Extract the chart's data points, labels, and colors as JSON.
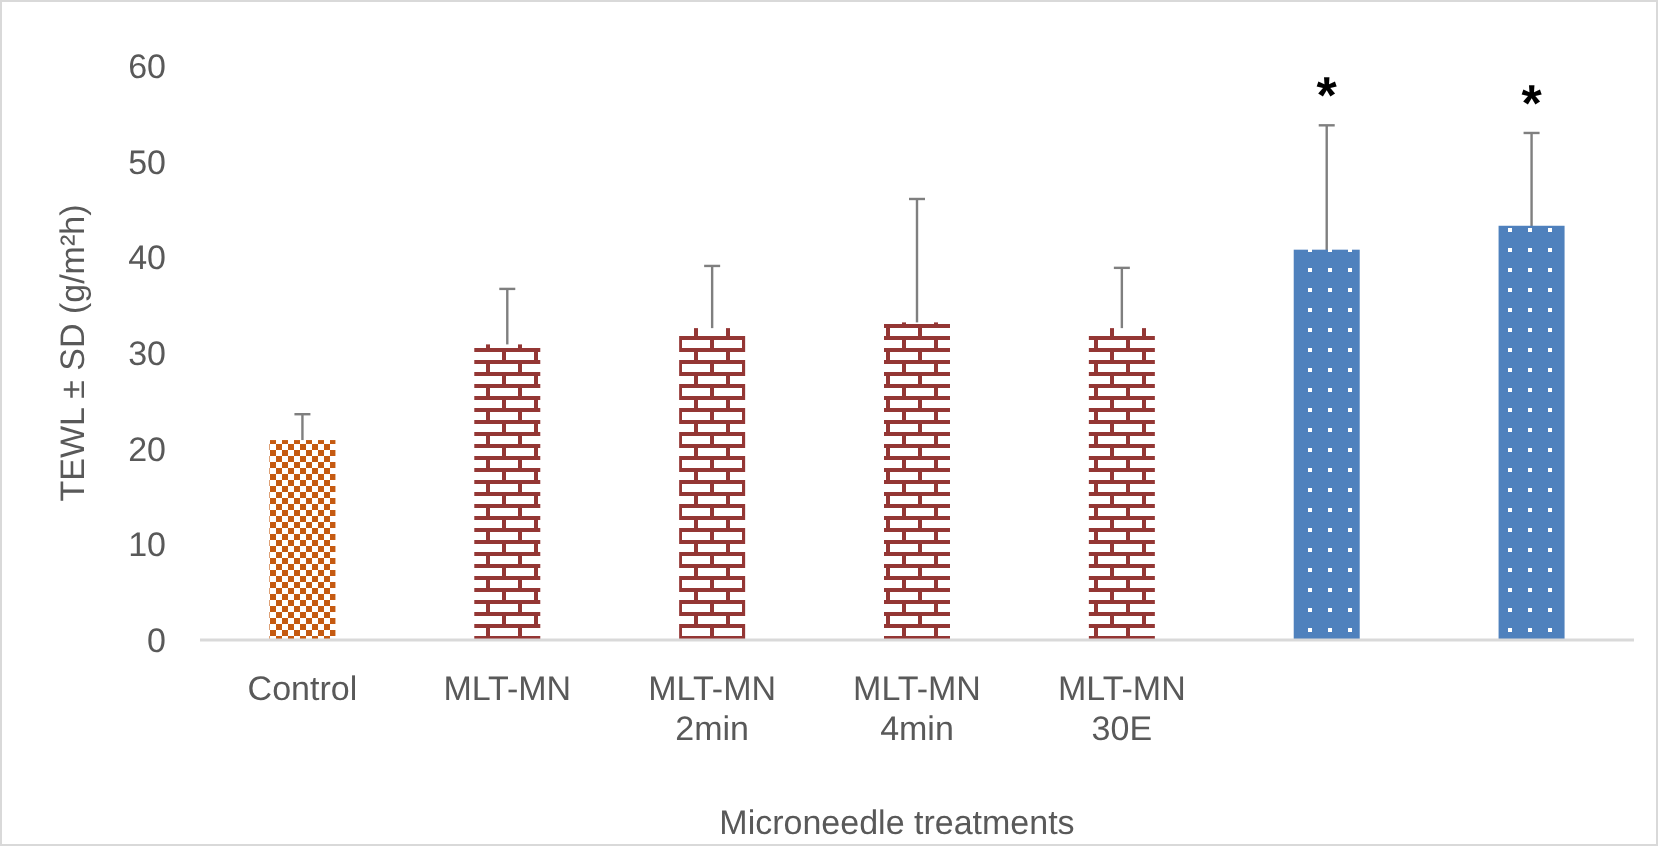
{
  "chart_data": {
    "type": "bar",
    "xlabel": "Microneedle treatments",
    "ylabel": "TEWL ± SD (g/m²h)",
    "categories": [
      "Control",
      "MLT-MN",
      "MLT-MN 2min",
      "MLT-MN 4min",
      "MLT-MN 30E",
      null,
      null
    ],
    "values": [
      20.9,
      30.9,
      32.6,
      33.2,
      32.6,
      40.8,
      43.3
    ],
    "errors": [
      2.7,
      5.8,
      6.5,
      12.9,
      6.3,
      13.0,
      9.7
    ],
    "colors": [
      "#c55a11",
      "#943634",
      "#943634",
      "#943634",
      "#943634",
      "#4f81bd",
      "#4f81bd"
    ],
    "value_labels": [
      null,
      null,
      null,
      null,
      null,
      "*",
      "*"
    ],
    "ylim": [
      0,
      60
    ],
    "yticks": [
      0,
      10,
      20,
      30,
      40,
      50,
      60
    ],
    "grid": false
  }
}
